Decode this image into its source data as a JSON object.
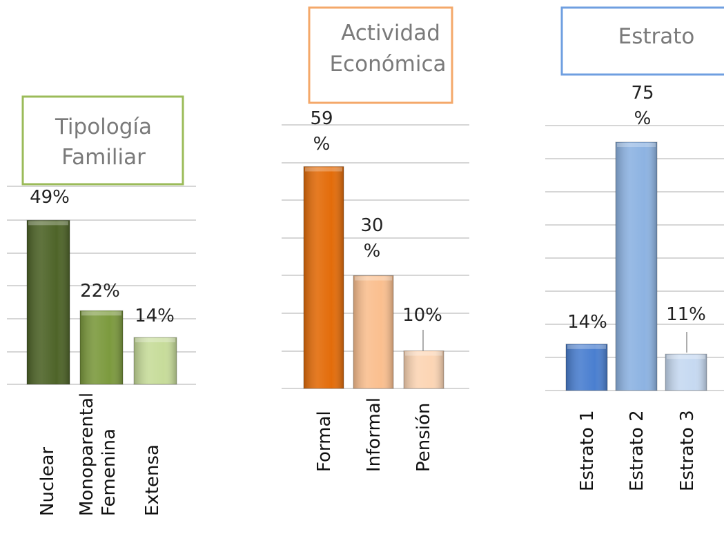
{
  "chart_data": [
    {
      "type": "bar",
      "title": "Tipología Familiar",
      "categories": [
        "Nuclear",
        "Monoparental Femenina",
        "Extensa"
      ],
      "values": [
        49,
        22,
        14
      ],
      "value_labels": [
        "49%",
        "22%",
        "14%"
      ],
      "unit": "%",
      "colors": [
        "#4e6428",
        "#7c9a3e",
        "#c7dc9a"
      ],
      "title_border_color": "#9bbb59",
      "grid": true
    },
    {
      "type": "bar",
      "title": "Actividad Económica",
      "categories": [
        "Formal",
        "Informal",
        "Pensión"
      ],
      "values": [
        59,
        30,
        10
      ],
      "value_labels": [
        "59 %",
        "30 %",
        "10%"
      ],
      "unit": "%",
      "colors": [
        "#e36c0a",
        "#fabf8f",
        "#fcd5b4"
      ],
      "title_border_color": "#f4a86a",
      "grid": true
    },
    {
      "type": "bar",
      "title": "Estrato",
      "categories": [
        "Estrato 1",
        "Estrato 2",
        "Estrato 3"
      ],
      "values": [
        14,
        75,
        11
      ],
      "value_labels": [
        "14%",
        "75 %",
        "11%"
      ],
      "unit": "%",
      "colors": [
        "#4a7fd0",
        "#8db3e2",
        "#c6d9f1"
      ],
      "title_border_color": "#6f9fe0",
      "grid": true
    }
  ]
}
